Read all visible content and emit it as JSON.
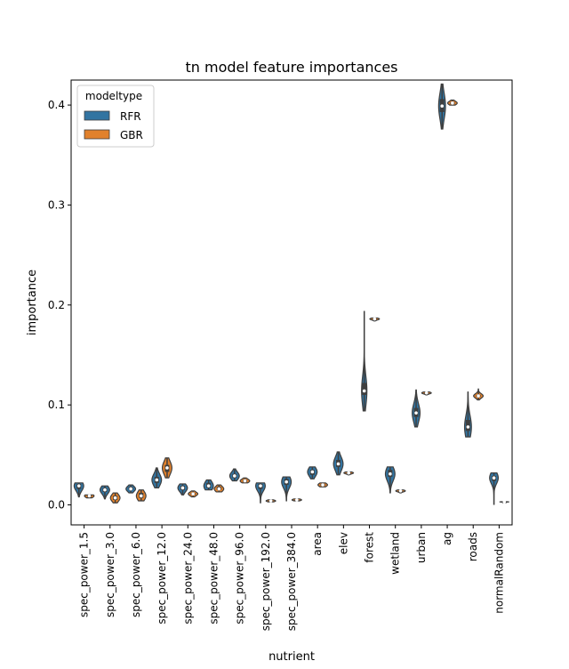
{
  "chart_data": {
    "type": "violin",
    "title": "tn model feature importances",
    "xlabel": "nutrient",
    "ylabel": "importance",
    "ylim": [
      -0.02,
      0.425
    ],
    "yticks": [
      0.0,
      0.1,
      0.2,
      0.3,
      0.4
    ],
    "ytick_labels": [
      "0.0",
      "0.1",
      "0.2",
      "0.3",
      "0.4"
    ],
    "legend": {
      "title": "modeltype",
      "position": "top-left"
    },
    "colors": {
      "RFR": "#3274a1",
      "GBR": "#e1812c",
      "edge": "#3f3f3f"
    },
    "categories": [
      "spec_power_1.5",
      "spec_power_3.0",
      "spec_power_6.0",
      "spec_power_12.0",
      "spec_power_24.0",
      "spec_power_48.0",
      "spec_power_96.0",
      "spec_power_192.0",
      "spec_power_384.0",
      "area",
      "elev",
      "forest",
      "wetland",
      "urban",
      "ag",
      "roads",
      "normalRandom"
    ],
    "series": [
      {
        "name": "RFR",
        "min": [
          0.008,
          0.006,
          0.012,
          0.017,
          0.01,
          0.015,
          0.024,
          0.002,
          0.004,
          0.026,
          0.03,
          0.094,
          0.012,
          0.078,
          0.376,
          0.068,
          0.0
        ],
        "q1": [
          0.016,
          0.013,
          0.015,
          0.022,
          0.015,
          0.017,
          0.027,
          0.016,
          0.02,
          0.03,
          0.038,
          0.11,
          0.028,
          0.088,
          0.393,
          0.074,
          0.024
        ],
        "median": [
          0.019,
          0.015,
          0.016,
          0.025,
          0.017,
          0.019,
          0.029,
          0.019,
          0.023,
          0.033,
          0.041,
          0.114,
          0.031,
          0.092,
          0.399,
          0.078,
          0.027
        ],
        "q3": [
          0.021,
          0.017,
          0.018,
          0.028,
          0.019,
          0.022,
          0.031,
          0.021,
          0.026,
          0.035,
          0.045,
          0.122,
          0.035,
          0.097,
          0.406,
          0.085,
          0.029
        ],
        "max": [
          0.022,
          0.019,
          0.02,
          0.037,
          0.021,
          0.025,
          0.036,
          0.022,
          0.028,
          0.038,
          0.053,
          0.194,
          0.038,
          0.115,
          0.421,
          0.113,
          0.032
        ]
      },
      {
        "name": "GBR",
        "min": [
          0.007,
          0.002,
          0.004,
          0.027,
          0.008,
          0.013,
          0.022,
          0.003,
          0.004,
          0.018,
          0.03,
          0.184,
          0.012,
          0.11,
          0.4,
          0.105,
          0.002
        ],
        "q1": [
          0.008,
          0.005,
          0.007,
          0.033,
          0.01,
          0.015,
          0.023,
          0.003,
          0.004,
          0.019,
          0.031,
          0.185,
          0.013,
          0.111,
          0.401,
          0.108,
          0.003
        ],
        "median": [
          0.009,
          0.007,
          0.009,
          0.037,
          0.011,
          0.016,
          0.024,
          0.004,
          0.005,
          0.02,
          0.032,
          0.186,
          0.014,
          0.112,
          0.402,
          0.109,
          0.003
        ],
        "q3": [
          0.01,
          0.009,
          0.012,
          0.04,
          0.012,
          0.018,
          0.025,
          0.004,
          0.005,
          0.021,
          0.032,
          0.186,
          0.014,
          0.112,
          0.403,
          0.11,
          0.003
        ],
        "max": [
          0.01,
          0.012,
          0.015,
          0.047,
          0.014,
          0.02,
          0.027,
          0.005,
          0.006,
          0.022,
          0.033,
          0.187,
          0.015,
          0.113,
          0.405,
          0.116,
          0.004
        ]
      }
    ]
  }
}
